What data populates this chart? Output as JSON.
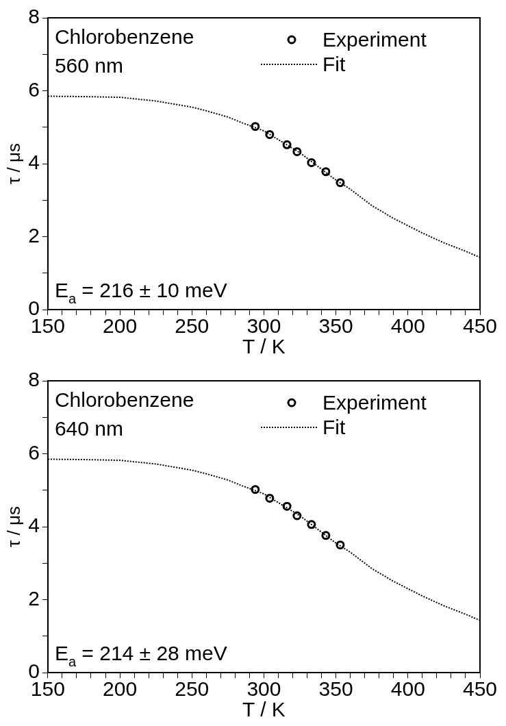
{
  "chart_data": [
    {
      "type": "scatter",
      "xlabel": "T / K",
      "ylabel": "τ / μs",
      "xlim": [
        150,
        450
      ],
      "ylim": [
        0,
        8
      ],
      "xticks": [
        150,
        {
          "value": 160,
          "label": null
        },
        {
          "value": 170,
          "label": null
        },
        {
          "value": 180,
          "label": null
        },
        {
          "value": 190,
          "label": null
        },
        200,
        {
          "value": 210,
          "label": null
        },
        {
          "value": 220,
          "label": null
        },
        {
          "value": 230,
          "label": null
        },
        {
          "value": 240,
          "label": null
        },
        250,
        {
          "value": 260,
          "label": null
        },
        {
          "value": 270,
          "label": null
        },
        {
          "value": 280,
          "label": null
        },
        {
          "value": 290,
          "label": null
        },
        300,
        {
          "value": 310,
          "label": null
        },
        {
          "value": 320,
          "label": null
        },
        {
          "value": 330,
          "label": null
        },
        {
          "value": 340,
          "label": null
        },
        350,
        {
          "value": 360,
          "label": null
        },
        {
          "value": 370,
          "label": null
        },
        {
          "value": 380,
          "label": null
        },
        {
          "value": 390,
          "label": null
        },
        400,
        {
          "value": 410,
          "label": null
        },
        {
          "value": 420,
          "label": null
        },
        {
          "value": 430,
          "label": null
        },
        {
          "value": 440,
          "label": null
        },
        450
      ],
      "yticks": [
        0,
        {
          "value": 1,
          "label": null
        },
        2,
        {
          "value": 3,
          "label": null
        },
        4,
        {
          "value": 5,
          "label": null
        },
        6,
        {
          "value": 7,
          "label": null
        },
        8
      ],
      "grid": false,
      "legend": "top right",
      "annotations": [
        "Chlorobenzene",
        "560 nm",
        "E$_{a}$ = 216 ± 10 meV"
      ],
      "series": [
        {
          "name": "Experiment",
          "type": "scatter",
          "marker": "circle",
          "color": "#000000",
          "x": [
            294,
            304,
            316,
            323,
            333,
            343,
            353
          ],
          "values": [
            5.02,
            4.8,
            4.52,
            4.33,
            4.03,
            3.78,
            3.48
          ]
        },
        {
          "name": "Fit",
          "type": "line",
          "marker": "none",
          "line_style": "dotted",
          "color": "#000000",
          "x": [
            150,
            175,
            200,
            225,
            250,
            260,
            275,
            285,
            300,
            325,
            350,
            360,
            375,
            390,
            400,
            410,
            425,
            440,
            450
          ],
          "values": [
            5.85,
            5.84,
            5.82,
            5.72,
            5.55,
            5.45,
            5.28,
            5.12,
            4.9,
            4.3,
            3.55,
            3.3,
            2.85,
            2.5,
            2.3,
            2.1,
            1.83,
            1.6,
            1.43
          ]
        }
      ]
    },
    {
      "type": "scatter",
      "xlabel": "T / K",
      "ylabel": "τ / μs",
      "xlim": [
        150,
        450
      ],
      "ylim": [
        0,
        8
      ],
      "xticks": [
        150,
        {
          "value": 160,
          "label": null
        },
        {
          "value": 170,
          "label": null
        },
        {
          "value": 180,
          "label": null
        },
        {
          "value": 190,
          "label": null
        },
        200,
        {
          "value": 210,
          "label": null
        },
        {
          "value": 220,
          "label": null
        },
        {
          "value": 230,
          "label": null
        },
        {
          "value": 240,
          "label": null
        },
        250,
        {
          "value": 260,
          "label": null
        },
        {
          "value": 270,
          "label": null
        },
        {
          "value": 280,
          "label": null
        },
        {
          "value": 290,
          "label": null
        },
        300,
        {
          "value": 310,
          "label": null
        },
        {
          "value": 320,
          "label": null
        },
        {
          "value": 330,
          "label": null
        },
        {
          "value": 340,
          "label": null
        },
        350,
        {
          "value": 360,
          "label": null
        },
        {
          "value": 370,
          "label": null
        },
        {
          "value": 380,
          "label": null
        },
        {
          "value": 390,
          "label": null
        },
        400,
        {
          "value": 410,
          "label": null
        },
        {
          "value": 420,
          "label": null
        },
        {
          "value": 430,
          "label": null
        },
        {
          "value": 440,
          "label": null
        },
        450
      ],
      "yticks": [
        0,
        {
          "value": 1,
          "label": null
        },
        2,
        {
          "value": 3,
          "label": null
        },
        4,
        {
          "value": 5,
          "label": null
        },
        6,
        {
          "value": 7,
          "label": null
        },
        8
      ],
      "grid": false,
      "legend": "top right",
      "annotations": [
        "Chlorobenzene",
        "640 nm",
        "E$_{a}$ = 214 ± 28 meV"
      ],
      "series": [
        {
          "name": "Experiment",
          "type": "scatter",
          "marker": "circle",
          "color": "#000000",
          "x": [
            294,
            304,
            316,
            323,
            333,
            343,
            353
          ],
          "values": [
            5.02,
            4.78,
            4.56,
            4.3,
            4.06,
            3.76,
            3.5
          ]
        },
        {
          "name": "Fit",
          "type": "line",
          "marker": "none",
          "line_style": "dotted",
          "color": "#000000",
          "x": [
            150,
            175,
            200,
            225,
            250,
            260,
            275,
            285,
            300,
            325,
            350,
            360,
            375,
            390,
            400,
            410,
            425,
            440,
            450
          ],
          "values": [
            5.85,
            5.84,
            5.82,
            5.72,
            5.55,
            5.45,
            5.28,
            5.12,
            4.9,
            4.3,
            3.55,
            3.3,
            2.85,
            2.5,
            2.3,
            2.1,
            1.83,
            1.6,
            1.43
          ]
        }
      ]
    }
  ]
}
